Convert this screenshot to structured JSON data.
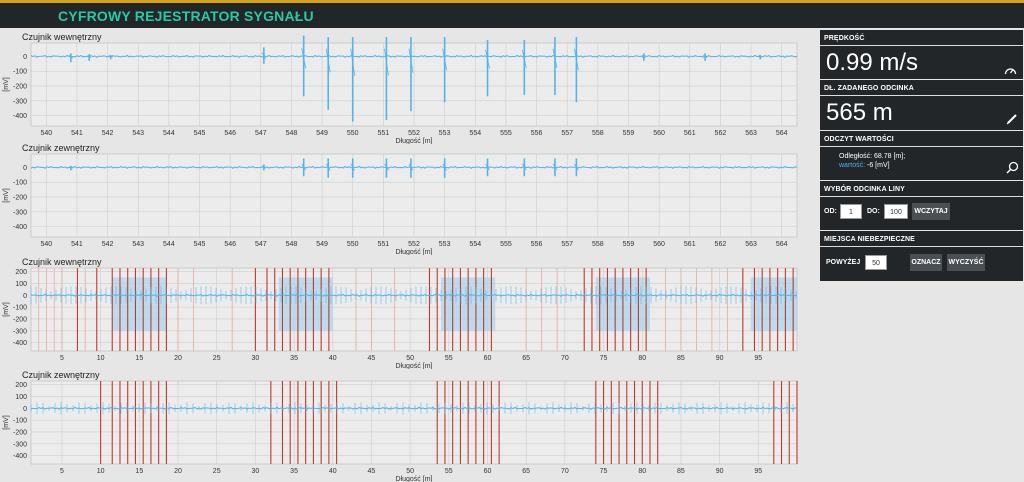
{
  "app": {
    "title": "CYFROWY REJESTRATOR SYGNAŁU"
  },
  "panels": [
    {
      "title": "Czujnik wewnętrzny",
      "xlabel": "Długość [m]",
      "ylabel": "[mV]"
    },
    {
      "title": "Czujnik zewnętrzny",
      "xlabel": "Długość [m]",
      "ylabel": "[mV]"
    },
    {
      "title": "Czujnik wewnętrzny",
      "xlabel": "Długość [m]",
      "ylabel": "[mV]"
    },
    {
      "title": "Czujnik zewnętrzny",
      "xlabel": "Długość [m]",
      "ylabel": "[mV]"
    }
  ],
  "chart_data": [
    {
      "type": "line",
      "title": "Czujnik wewnętrzny",
      "xlabel": "Długość [m]",
      "ylabel": "[mV]",
      "xlim": [
        539.5,
        564.5
      ],
      "ylim": [
        -470,
        90
      ],
      "xticks": [
        540,
        541,
        542,
        543,
        544,
        545,
        546,
        547,
        548,
        549,
        550,
        551,
        552,
        553,
        554,
        555,
        556,
        557,
        558,
        559,
        560,
        561,
        562,
        563,
        564
      ],
      "xticklabels": [
        "540",
        "541",
        "542",
        "543",
        "544",
        "545",
        "546",
        "547",
        "548",
        "549",
        "550",
        "551",
        "552",
        "553",
        "554",
        "555",
        "556",
        "557",
        "558",
        "559",
        "560",
        "561",
        "562",
        "563",
        "564"
      ],
      "yticks": [
        0,
        -100,
        -200,
        -300,
        -400
      ],
      "grid": true,
      "line_color": "#54b3e8",
      "baseline": 0,
      "spikes": [
        {
          "x": 540.8,
          "min": -40,
          "max": 20
        },
        {
          "x": 541.4,
          "min": -30,
          "max": 15
        },
        {
          "x": 542.1,
          "min": -20,
          "max": 10
        },
        {
          "x": 547.1,
          "min": -50,
          "max": 60
        },
        {
          "x": 548.4,
          "min": -270,
          "max": 140
        },
        {
          "x": 549.2,
          "min": -360,
          "max": 130
        },
        {
          "x": 550.0,
          "min": -440,
          "max": 130
        },
        {
          "x": 551.1,
          "min": -430,
          "max": 130
        },
        {
          "x": 551.9,
          "min": -370,
          "max": 130
        },
        {
          "x": 553.0,
          "min": -310,
          "max": 130
        },
        {
          "x": 554.4,
          "min": -270,
          "max": 110
        },
        {
          "x": 555.6,
          "min": -260,
          "max": 110
        },
        {
          "x": 556.6,
          "min": -260,
          "max": 130
        },
        {
          "x": 557.3,
          "min": -310,
          "max": 130
        },
        {
          "x": 559.5,
          "min": -30,
          "max": 20
        },
        {
          "x": 561.5,
          "min": -30,
          "max": 20
        },
        {
          "x": 563.3,
          "min": -20,
          "max": 10
        }
      ]
    },
    {
      "type": "line",
      "title": "Czujnik zewnętrzny",
      "xlabel": "Długość [m]",
      "ylabel": "[mV]",
      "xlim": [
        539.5,
        564.5
      ],
      "ylim": [
        -470,
        90
      ],
      "xticks": [
        540,
        541,
        542,
        543,
        544,
        545,
        546,
        547,
        548,
        549,
        550,
        551,
        552,
        553,
        554,
        555,
        556,
        557,
        558,
        559,
        560,
        561,
        562,
        563,
        564
      ],
      "xticklabels": [
        "540",
        "541",
        "542",
        "543",
        "544",
        "545",
        "546",
        "547",
        "548",
        "549",
        "550",
        "551",
        "552",
        "553",
        "554",
        "555",
        "556",
        "557",
        "558",
        "559",
        "560",
        "561",
        "562",
        "563",
        "564"
      ],
      "yticks": [
        0,
        -100,
        -200,
        -300,
        -400
      ],
      "grid": true,
      "line_color": "#54b3e8",
      "baseline": 0,
      "spikes": [
        {
          "x": 540.8,
          "min": -20,
          "max": 10
        },
        {
          "x": 547.1,
          "min": -20,
          "max": 20
        },
        {
          "x": 548.4,
          "min": -60,
          "max": 60
        },
        {
          "x": 549.2,
          "min": -70,
          "max": 60
        },
        {
          "x": 550.0,
          "min": -70,
          "max": 60
        },
        {
          "x": 551.1,
          "min": -70,
          "max": 60
        },
        {
          "x": 551.9,
          "min": -70,
          "max": 60
        },
        {
          "x": 553.0,
          "min": -70,
          "max": 60
        },
        {
          "x": 554.4,
          "min": -60,
          "max": 60
        },
        {
          "x": 555.6,
          "min": -60,
          "max": 60
        },
        {
          "x": 556.6,
          "min": -60,
          "max": 60
        },
        {
          "x": 557.3,
          "min": -60,
          "max": 60
        }
      ]
    },
    {
      "type": "line",
      "title": "Czujnik wewnętrzny",
      "xlabel": "Długość [m]",
      "ylabel": "[mV]",
      "xlim": [
        1,
        100
      ],
      "ylim": [
        -470,
        230
      ],
      "xticks": [
        5,
        10,
        15,
        20,
        25,
        30,
        35,
        40,
        45,
        50,
        55,
        60,
        65,
        70,
        75,
        80,
        85,
        90,
        95
      ],
      "xticklabels": [
        "5",
        "10",
        "15",
        "20",
        "25",
        "30",
        "35",
        "40",
        "45",
        "50",
        "55",
        "60",
        "65",
        "70",
        "75",
        "80",
        "85",
        "90",
        "95"
      ],
      "yticks": [
        200,
        100,
        0,
        -100,
        -200,
        -300,
        -400
      ],
      "grid": true,
      "line_color": "#54b3e8",
      "band_color": "#a8d4ee",
      "marker_color": "#c0392b",
      "faint_marker_color": "#e8a8a0",
      "bands": [
        [
          11.5,
          18.5
        ],
        [
          33,
          40
        ],
        [
          54,
          61
        ],
        [
          74,
          81
        ],
        [
          94,
          100
        ]
      ],
      "markers": [
        7,
        9.5,
        11.5,
        12.5,
        13.5,
        14.5,
        15.5,
        16.5,
        17.5,
        18.5,
        30,
        31.5,
        32.5,
        33.5,
        34.5,
        35.5,
        36.5,
        37.5,
        38.5,
        39.5,
        52.5,
        53.5,
        54.5,
        55.5,
        56.5,
        57.5,
        58.5,
        59.5,
        60.5,
        72.5,
        73.5,
        74.5,
        75.5,
        76.5,
        77.5,
        78.5,
        79.5,
        80.5,
        93,
        94.5,
        95.5,
        96.5,
        97.5,
        98.5,
        99.5
      ],
      "faint_markers": [
        2,
        3,
        4,
        5,
        8,
        20,
        22,
        27,
        43,
        45,
        48,
        65,
        67,
        69,
        83,
        85,
        87,
        89,
        91
      ]
    },
    {
      "type": "line",
      "title": "Czujnik zewnętrzny",
      "xlabel": "Długość [m]",
      "ylabel": "[mV]",
      "xlim": [
        1,
        100
      ],
      "ylim": [
        -470,
        230
      ],
      "xticks": [
        5,
        10,
        15,
        20,
        25,
        30,
        35,
        40,
        45,
        50,
        55,
        60,
        65,
        70,
        75,
        80,
        85,
        90,
        95
      ],
      "xticklabels": [
        "5",
        "10",
        "15",
        "20",
        "25",
        "30",
        "35",
        "40",
        "45",
        "50",
        "55",
        "60",
        "65",
        "70",
        "75",
        "80",
        "85",
        "90",
        "95"
      ],
      "yticks": [
        200,
        100,
        0,
        -100,
        -200,
        -300,
        -400
      ],
      "grid": true,
      "line_color": "#54b3e8",
      "marker_color": "#c0392b",
      "bands": [],
      "markers": [
        10,
        11.5,
        12.5,
        13.5,
        14.5,
        15.5,
        16.5,
        17.5,
        18.5,
        32,
        33.5,
        34.5,
        35.5,
        36.5,
        37.5,
        38.5,
        39.5,
        40.5,
        53.5,
        54.5,
        55.5,
        56.5,
        57.5,
        58.5,
        59.5,
        60.5,
        61.5,
        74,
        75,
        76,
        77,
        78,
        79,
        80,
        81,
        82,
        97,
        98,
        99,
        100
      ]
    }
  ],
  "side": {
    "speed": {
      "label": "PRĘDKOŚĆ",
      "value": "0.99 m/s",
      "icon": "speedometer-icon"
    },
    "length": {
      "label": "DŁ. ZADANEGO ODCINKA",
      "value": "565 m",
      "icon": "pencil-icon"
    },
    "reading": {
      "label": "ODCZYT WARTOŚCI",
      "distance": "Odległość: 68.78 [m];",
      "value_label": "wartość:",
      "value": "-6 [mV]",
      "icon": "search-icon"
    },
    "range": {
      "label": "WYBÓR ODCINKA LINY",
      "from_label": "OD:",
      "from_value": "1",
      "to_label": "DO:",
      "to_value": "100",
      "load_label": "WCZYTAJ"
    },
    "danger": {
      "label": "MIEJSCA NIEBEZPIECZNE",
      "above_label": "POWYŻEJ",
      "above_value": "50",
      "mark_label": "OZNACZ",
      "clear_label": "WYCZYŚĆ"
    }
  }
}
